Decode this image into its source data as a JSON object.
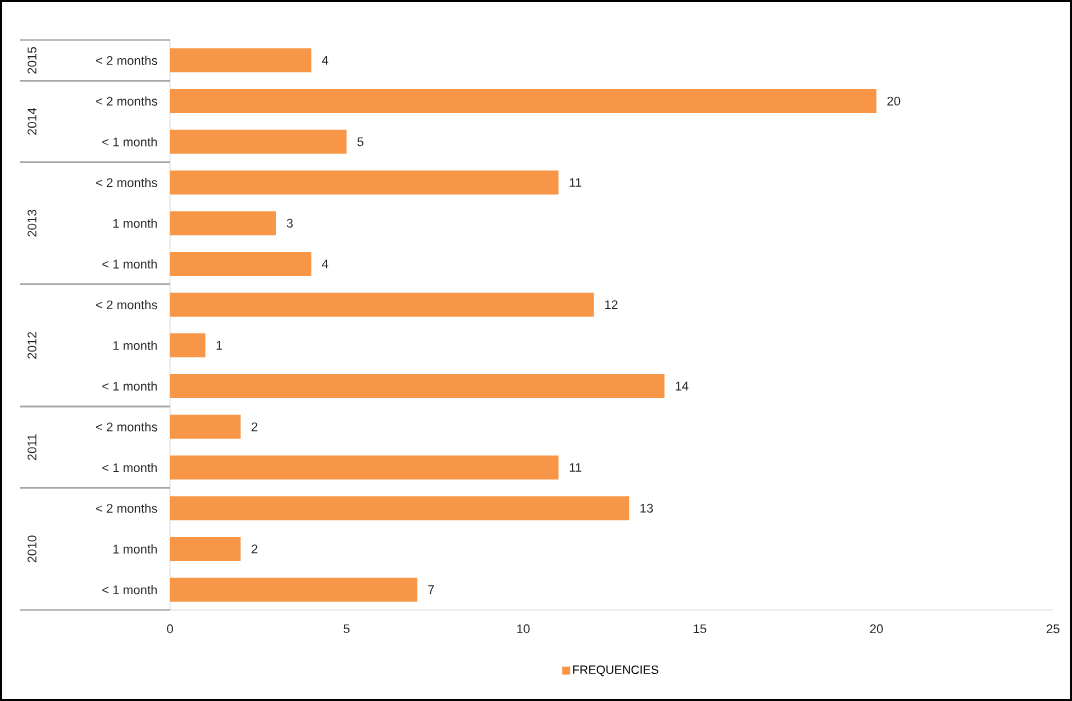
{
  "chart_data": {
    "type": "bar",
    "orientation": "horizontal",
    "categories": [
      "< 2 months",
      "< 2 months",
      "< 1 month",
      "< 2 months",
      "1 month",
      "< 1 month",
      "< 2 months",
      "1 month",
      "< 1 month",
      "< 2 months",
      "< 1 month",
      "< 2 months",
      "1 month",
      "< 1 month"
    ],
    "series": [
      {
        "name": "FREQUENCIES",
        "color": "#f79646",
        "values": [
          4,
          20,
          5,
          11,
          3,
          4,
          12,
          1,
          14,
          2,
          11,
          13,
          2,
          7
        ]
      }
    ],
    "annotations": [
      "2015",
      "2014",
      "2013",
      "2012",
      "2011",
      "2010"
    ],
    "xlim": [
      0,
      25
    ],
    "xticks": [
      0,
      5,
      10,
      15,
      20,
      25
    ],
    "data_labels": true,
    "legend": "bottom"
  }
}
